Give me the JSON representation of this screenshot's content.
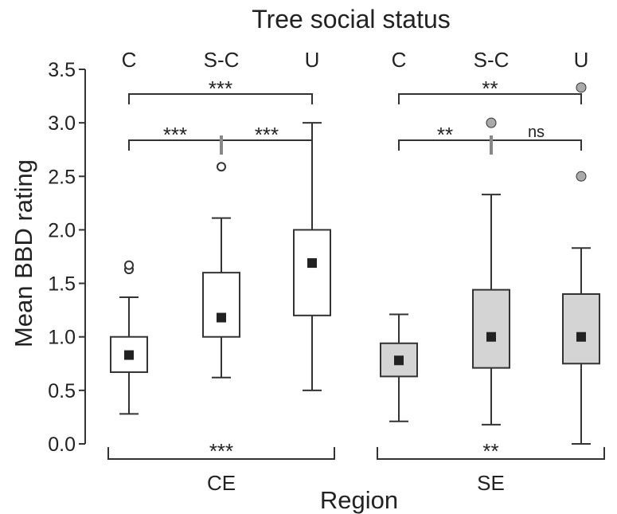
{
  "chart_data": {
    "type": "box",
    "title": "Tree social status",
    "xlabel": "Region",
    "ylabel": "Mean BBD rating",
    "ylim": [
      0,
      3.5
    ],
    "yticks": [
      "0.0",
      "0.5",
      "1.0",
      "1.5",
      "2.0",
      "2.5",
      "3.0",
      "3.5"
    ],
    "status_labels": [
      "C",
      "S-C",
      "U"
    ],
    "groups": [
      {
        "label": "CE",
        "fill": "#ffffff",
        "boxes": [
          {
            "status": "C",
            "whisker_low": 0.28,
            "q1": 0.67,
            "mean": 0.83,
            "q3": 1.0,
            "whisker_high": 1.37,
            "outliers": [
              1.63,
              1.67
            ],
            "outlier_style": "open"
          },
          {
            "status": "S-C",
            "whisker_low": 0.62,
            "q1": 1.0,
            "mean": 1.18,
            "q3": 1.6,
            "whisker_high": 2.11,
            "outliers": [
              2.59
            ],
            "outlier_style": "open"
          },
          {
            "status": "U",
            "whisker_low": 0.5,
            "q1": 1.2,
            "mean": 1.69,
            "q3": 2.0,
            "whisker_high": 3.0,
            "outliers": [],
            "outlier_style": "open"
          }
        ],
        "comparisons": [
          {
            "from": 0,
            "to": 2,
            "label": "***",
            "level": "high"
          },
          {
            "from": 0,
            "to": 1,
            "label": "***",
            "level": "low"
          },
          {
            "from": 1,
            "to": 2,
            "label": "***",
            "level": "low"
          }
        ],
        "region_label": "***"
      },
      {
        "label": "SE",
        "fill": "#d4d4d4",
        "boxes": [
          {
            "status": "C",
            "whisker_low": 0.21,
            "q1": 0.63,
            "mean": 0.78,
            "q3": 0.94,
            "whisker_high": 1.21,
            "outliers": [],
            "outlier_style": "filled"
          },
          {
            "status": "S-C",
            "whisker_low": 0.18,
            "q1": 0.71,
            "mean": 1.0,
            "q3": 1.44,
            "whisker_high": 2.33,
            "outliers": [
              3.0
            ],
            "outlier_style": "filled"
          },
          {
            "status": "U",
            "whisker_low": 0.0,
            "q1": 0.75,
            "mean": 1.0,
            "q3": 1.4,
            "whisker_high": 1.83,
            "outliers": [
              2.5,
              3.33
            ],
            "outlier_style": "filled"
          }
        ],
        "comparisons": [
          {
            "from": 0,
            "to": 2,
            "label": "**",
            "level": "high"
          },
          {
            "from": 0,
            "to": 1,
            "label": "**",
            "level": "low"
          },
          {
            "from": 1,
            "to": 2,
            "label": "ns",
            "level": "low"
          }
        ],
        "region_label": "**"
      }
    ],
    "colors": {
      "line": "#333333",
      "mean_marker": "#222222",
      "outlier_filled": "#aaaaaa"
    },
    "legend": "none",
    "grid": false
  }
}
